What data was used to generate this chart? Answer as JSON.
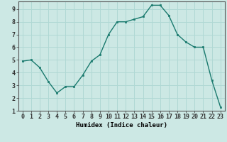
{
  "x": [
    0,
    1,
    2,
    3,
    4,
    5,
    6,
    7,
    8,
    9,
    10,
    11,
    12,
    13,
    14,
    15,
    16,
    17,
    18,
    19,
    20,
    21,
    22,
    23
  ],
  "y": [
    4.9,
    5.0,
    4.4,
    3.3,
    2.4,
    2.9,
    2.9,
    3.8,
    4.9,
    5.4,
    7.0,
    8.0,
    8.0,
    8.2,
    8.4,
    9.3,
    9.3,
    8.5,
    7.0,
    6.4,
    6.0,
    6.0,
    3.4,
    1.3
  ],
  "xlabel": "Humidex (Indice chaleur)",
  "ylim": [
    1,
    9.6
  ],
  "xlim": [
    -0.5,
    23.5
  ],
  "yticks": [
    1,
    2,
    3,
    4,
    5,
    6,
    7,
    8,
    9
  ],
  "xticks": [
    0,
    1,
    2,
    3,
    4,
    5,
    6,
    7,
    8,
    9,
    10,
    11,
    12,
    13,
    14,
    15,
    16,
    17,
    18,
    19,
    20,
    21,
    22,
    23
  ],
  "line_color": "#1a7a6e",
  "marker_color": "#1a7a6e",
  "bg_color": "#cce8e4",
  "grid_color": "#b0d8d4",
  "label_fontsize": 6.5,
  "tick_fontsize": 6
}
